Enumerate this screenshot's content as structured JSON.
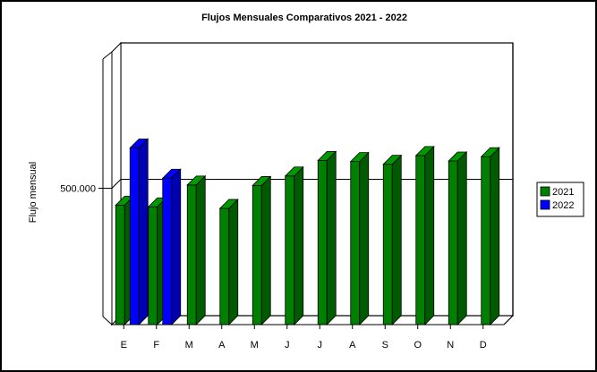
{
  "chart_data": {
    "type": "bar",
    "title": "Flujos Mensuales Comparativos 2021 - 2022",
    "xlabel": "",
    "ylabel": "Flujo mensual",
    "categories": [
      "E",
      "F",
      "M",
      "A",
      "M",
      "J",
      "J",
      "A",
      "S",
      "O",
      "N",
      "D"
    ],
    "y_tick_labels": [
      "500.000"
    ],
    "y_tick_values": [
      500000
    ],
    "ylim": [
      0,
      1000000
    ],
    "grid": true,
    "legend_position": "right",
    "series": [
      {
        "name": "2021",
        "color": "#008000",
        "values": [
          438000,
          432000,
          512000,
          426000,
          510000,
          545000,
          602000,
          598000,
          588000,
          620000,
          600000,
          616000
        ]
      },
      {
        "name": "2022",
        "color": "#0000ff",
        "values": [
          648000,
          537000,
          null,
          null,
          null,
          null,
          null,
          null,
          null,
          null,
          null,
          null
        ]
      }
    ]
  }
}
